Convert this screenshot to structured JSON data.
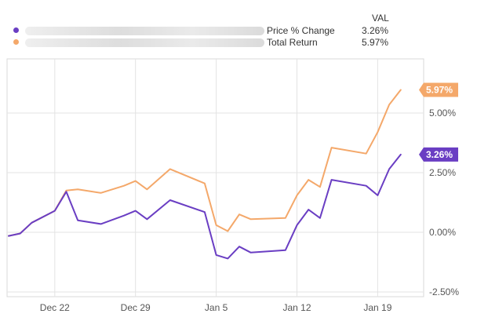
{
  "legend": {
    "header": "VAL",
    "rows": [
      {
        "name": "Price % Change",
        "value": "3.26%",
        "color": "#6a3ec3"
      },
      {
        "name": "Total Return",
        "value": "5.97%",
        "color": "#f4a86a"
      }
    ]
  },
  "chart_data": {
    "type": "line",
    "x_tick_labels": [
      "Dec 22",
      "Dec 29",
      "Jan 5",
      "Jan 12",
      "Jan 19"
    ],
    "y_tick_labels": [
      "5.00%",
      "2.50%",
      "0.00%",
      "-2.50%"
    ],
    "ylim": [
      -2.5,
      6.2
    ],
    "grid": true,
    "series": [
      {
        "name": "Price % Change",
        "color": "#6a3ec3",
        "end_label": "3.26%",
        "points": [
          [
            "Dec 18",
            -0.15
          ],
          [
            "Dec 19",
            -0.05
          ],
          [
            "Dec 20",
            0.4
          ],
          [
            "Dec 22",
            0.9
          ],
          [
            "Dec 23",
            1.7
          ],
          [
            "Dec 24",
            0.5
          ],
          [
            "Dec 26",
            0.35
          ],
          [
            "Dec 28",
            0.7
          ],
          [
            "Dec 29",
            0.9
          ],
          [
            "Dec 30",
            0.55
          ],
          [
            "Jan 1",
            1.35
          ],
          [
            "Jan 4",
            0.85
          ],
          [
            "Jan 5",
            -0.95
          ],
          [
            "Jan 6",
            -1.1
          ],
          [
            "Jan 7",
            -0.6
          ],
          [
            "Jan 8",
            -0.85
          ],
          [
            "Jan 11",
            -0.75
          ],
          [
            "Jan 12",
            0.3
          ],
          [
            "Jan 13",
            0.95
          ],
          [
            "Jan 14",
            0.6
          ],
          [
            "Jan 15",
            2.2
          ],
          [
            "Jan 18",
            1.95
          ],
          [
            "Jan 19",
            1.55
          ],
          [
            "Jan 20",
            2.65
          ],
          [
            "Jan 21",
            3.26
          ]
        ]
      },
      {
        "name": "Total Return",
        "color": "#f4a86a",
        "end_label": "5.97%",
        "points": [
          [
            "Dec 18",
            -0.15
          ],
          [
            "Dec 19",
            -0.05
          ],
          [
            "Dec 20",
            0.4
          ],
          [
            "Dec 22",
            0.9
          ],
          [
            "Dec 23",
            1.75
          ],
          [
            "Dec 24",
            1.8
          ],
          [
            "Dec 26",
            1.65
          ],
          [
            "Dec 28",
            1.95
          ],
          [
            "Dec 29",
            2.15
          ],
          [
            "Dec 30",
            1.8
          ],
          [
            "Jan 1",
            2.65
          ],
          [
            "Jan 4",
            2.05
          ],
          [
            "Jan 5",
            0.3
          ],
          [
            "Jan 6",
            0.05
          ],
          [
            "Jan 7",
            0.75
          ],
          [
            "Jan 8",
            0.55
          ],
          [
            "Jan 11",
            0.6
          ],
          [
            "Jan 12",
            1.55
          ],
          [
            "Jan 13",
            2.2
          ],
          [
            "Jan 14",
            1.9
          ],
          [
            "Jan 15",
            3.55
          ],
          [
            "Jan 18",
            3.3
          ],
          [
            "Jan 19",
            4.2
          ],
          [
            "Jan 20",
            5.35
          ],
          [
            "Jan 21",
            5.97
          ]
        ]
      }
    ]
  }
}
